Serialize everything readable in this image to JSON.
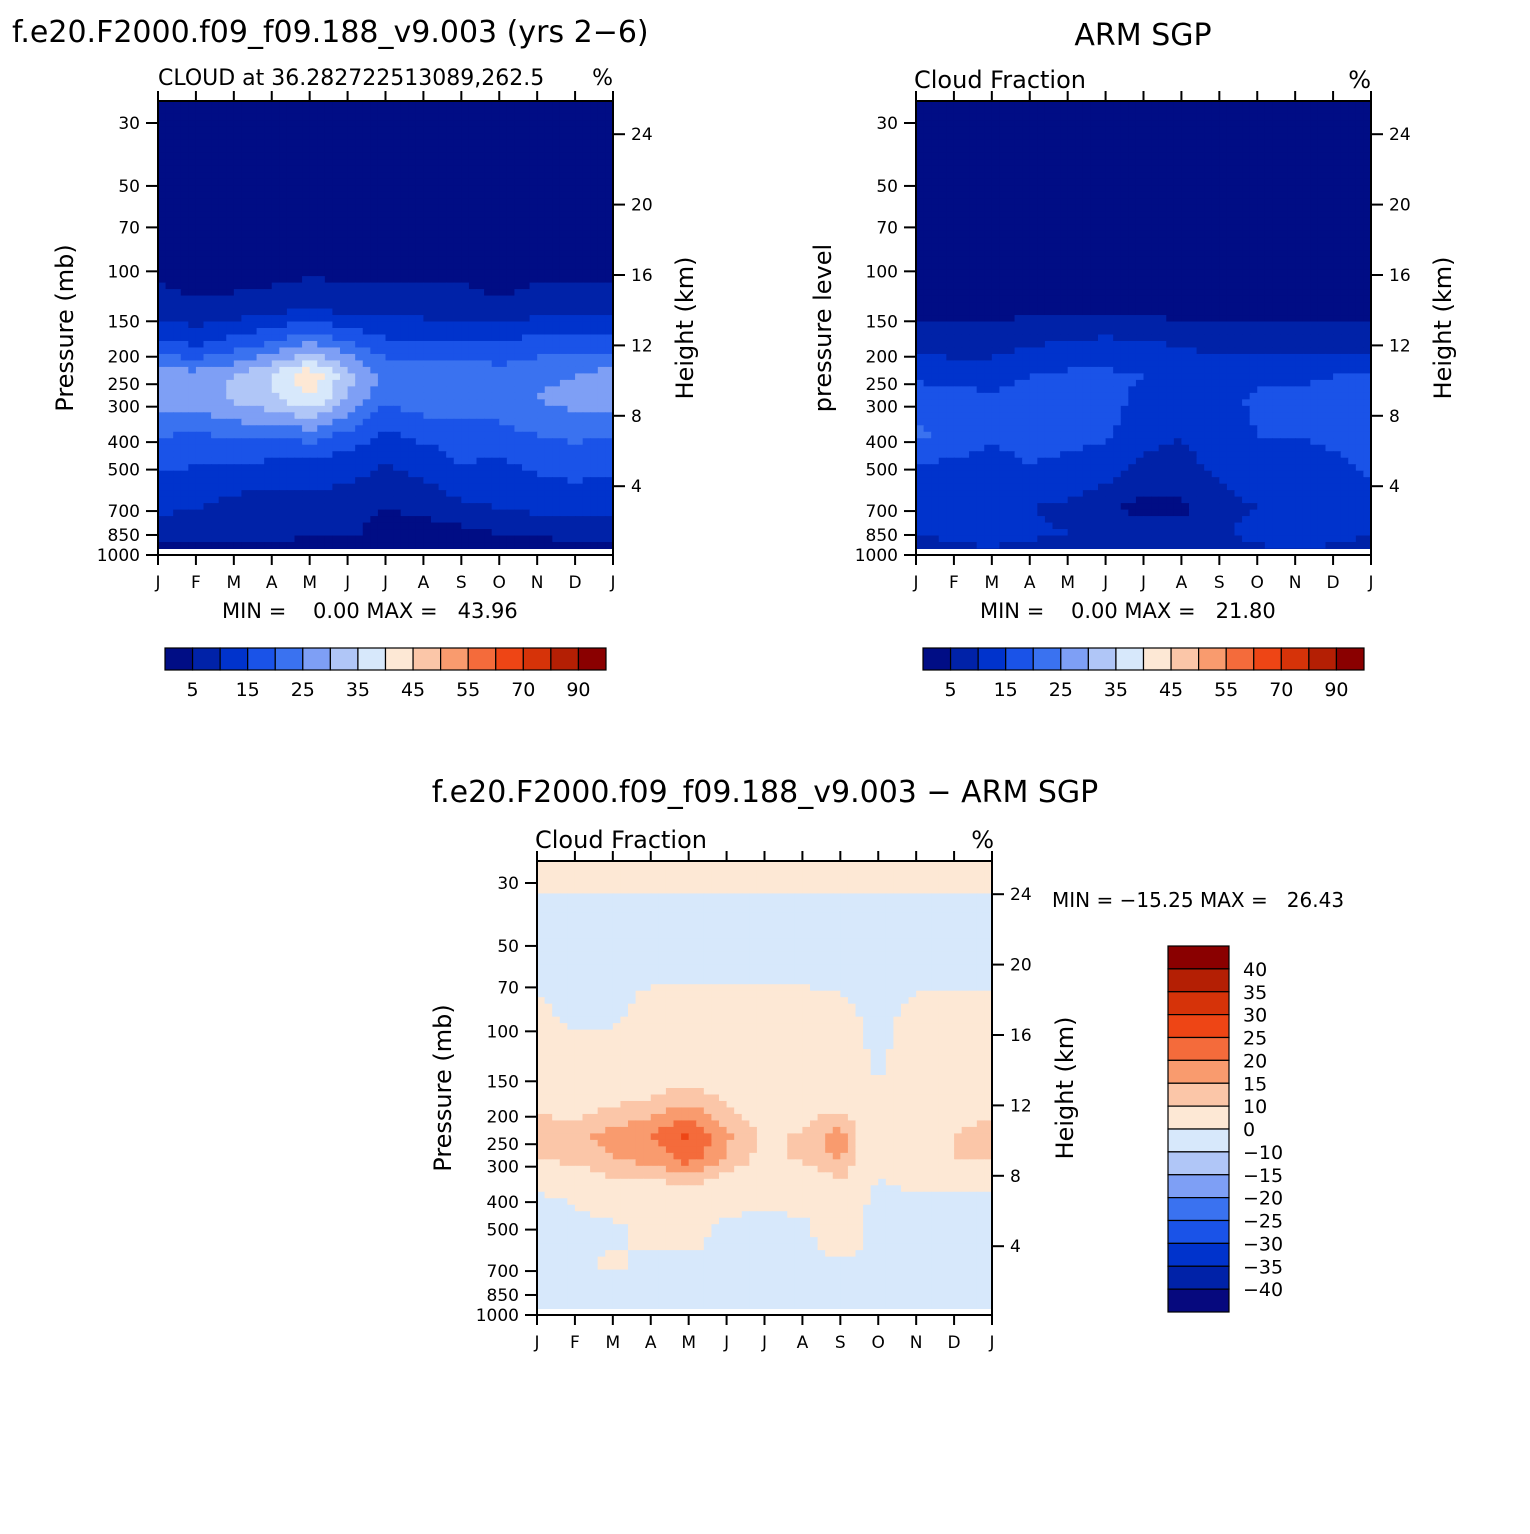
{
  "figure": {
    "top_left_title": "f.e20.F2000.f09_f09.188_v9.003 (yrs 2−6)",
    "top_right_title": "ARM SGP",
    "bottom_title": "f.e20.F2000.f09_f09.188_v9.003 − ARM SGP"
  },
  "chart_data": [
    {
      "type": "heatmap",
      "subtitle_left": "CLOUD at 36.282722513089,262.5",
      "subtitle_right": "%",
      "ylabel": "Pressure (mb)",
      "ylabel_right": "Height (km)",
      "x_ticks": [
        "J",
        "F",
        "M",
        "A",
        "M",
        "J",
        "J",
        "A",
        "S",
        "O",
        "N",
        "D",
        "J"
      ],
      "y_ticks": [
        "30",
        "50",
        "70",
        "100",
        "150",
        "200",
        "250",
        "300",
        "400",
        "500",
        "700",
        "850",
        "1000"
      ],
      "y_right_ticks": [
        "24",
        "20",
        "16",
        "12",
        "8",
        "4"
      ],
      "min_max_text": "MIN =    0.00 MAX =   43.96",
      "min": 0.0,
      "max": 43.96,
      "colorbar_labels": [
        "5",
        "15",
        "25",
        "35",
        "45",
        "55",
        "70",
        "90"
      ],
      "levels": [
        5,
        10,
        15,
        20,
        25,
        30,
        35,
        40,
        45,
        50,
        55,
        60,
        70,
        80,
        90
      ],
      "field": {
        "months": [
          "Jan",
          "Feb",
          "Mar",
          "Apr",
          "May",
          "Jun",
          "Jul",
          "Aug",
          "Sep",
          "Oct",
          "Nov",
          "Dec",
          "Jan"
        ],
        "pressure_mb": [
          1000,
          850,
          700,
          500,
          400,
          300,
          250,
          200,
          150,
          100,
          70,
          50,
          30
        ],
        "values": [
          [
            0,
            0,
            0,
            0,
            0,
            0,
            0,
            0,
            0,
            0,
            0,
            0,
            0
          ],
          [
            7,
            7,
            8,
            7,
            6,
            6,
            3,
            3,
            3,
            5,
            6,
            7,
            7
          ],
          [
            11,
            10,
            8,
            6,
            8,
            7,
            5,
            6,
            9,
            10,
            11,
            12,
            11
          ],
          [
            16,
            15,
            15,
            14,
            13,
            12,
            10,
            12,
            15,
            14,
            16,
            17,
            16
          ],
          [
            20,
            19,
            21,
            20,
            22,
            18,
            14,
            16,
            17,
            18,
            20,
            21,
            20
          ],
          [
            29,
            28,
            31,
            34,
            40,
            30,
            21,
            23,
            24,
            23,
            25,
            27,
            29
          ],
          [
            28,
            27,
            30,
            35,
            44,
            32,
            24,
            24,
            25,
            22,
            24,
            25,
            28
          ],
          [
            17,
            15,
            18,
            22,
            27,
            22,
            17,
            16,
            16,
            16,
            18,
            19,
            17
          ],
          [
            8,
            6,
            7,
            8,
            10,
            8,
            9,
            8,
            8,
            6,
            8,
            9,
            8
          ],
          [
            2,
            1,
            1,
            1,
            2,
            2,
            2,
            2,
            2,
            1,
            2,
            2,
            2
          ],
          [
            0,
            0,
            0,
            0,
            0,
            0,
            0,
            0,
            0,
            0,
            0,
            0,
            0
          ],
          [
            0,
            0,
            0,
            0,
            0,
            0,
            0,
            0,
            0,
            0,
            0,
            0,
            0
          ],
          [
            0,
            0,
            0,
            0,
            0,
            0,
            0,
            0,
            0,
            0,
            0,
            0,
            0
          ]
        ]
      }
    },
    {
      "type": "heatmap",
      "subtitle_left": "Cloud Fraction",
      "subtitle_right": "%",
      "ylabel": "pressure level",
      "ylabel_right": "Height (km)",
      "x_ticks": [
        "J",
        "F",
        "M",
        "A",
        "M",
        "J",
        "J",
        "A",
        "S",
        "O",
        "N",
        "D",
        "J"
      ],
      "y_ticks": [
        "30",
        "50",
        "70",
        "100",
        "150",
        "200",
        "250",
        "300",
        "400",
        "500",
        "700",
        "850",
        "1000"
      ],
      "y_right_ticks": [
        "24",
        "20",
        "16",
        "12",
        "8",
        "4"
      ],
      "min_max_text": "MIN =    0.00 MAX =   21.80",
      "min": 0.0,
      "max": 21.8,
      "colorbar_labels": [
        "5",
        "15",
        "25",
        "35",
        "45",
        "55",
        "70",
        "90"
      ],
      "levels": [
        5,
        10,
        15,
        20,
        25,
        30,
        35,
        40,
        45,
        50,
        55,
        60,
        70,
        80,
        90
      ],
      "field": {
        "months": [
          "Jan",
          "Feb",
          "Mar",
          "Apr",
          "May",
          "Jun",
          "Jul",
          "Aug",
          "Sep",
          "Oct",
          "Nov",
          "Dec",
          "Jan"
        ],
        "pressure_mb": [
          1000,
          850,
          700,
          500,
          400,
          300,
          250,
          200,
          150,
          100,
          70,
          50,
          30
        ],
        "values": [
          [
            7,
            8,
            8,
            7,
            7,
            6,
            6,
            5,
            6,
            8,
            9,
            8,
            7
          ],
          [
            10,
            11,
            13,
            11,
            10,
            9,
            8,
            7,
            9,
            12,
            14,
            12,
            10
          ],
          [
            12,
            11,
            12,
            10,
            9,
            6,
            3,
            4,
            8,
            10,
            11,
            10,
            12
          ],
          [
            15,
            14,
            13,
            15,
            14,
            13,
            9,
            9,
            11,
            13,
            13,
            14,
            16
          ],
          [
            21,
            18,
            16,
            17,
            16,
            16,
            11,
            10,
            12,
            15,
            15,
            16,
            19
          ],
          [
            18,
            17,
            16,
            17,
            18,
            18,
            13,
            12,
            13,
            16,
            16,
            17,
            18
          ],
          [
            14,
            13,
            13,
            15,
            16,
            16,
            15,
            13,
            13,
            14,
            14,
            15,
            15
          ],
          [
            9,
            8,
            8,
            10,
            11,
            12,
            11,
            10,
            9,
            8,
            8,
            9,
            9
          ],
          [
            3,
            3,
            3,
            4,
            4,
            4,
            4,
            3,
            3,
            3,
            3,
            3,
            3
          ],
          [
            1,
            1,
            1,
            1,
            1,
            1,
            1,
            1,
            1,
            1,
            1,
            1,
            1
          ],
          [
            0,
            0,
            0,
            0,
            0,
            0,
            0,
            0,
            0,
            0,
            0,
            0,
            0
          ],
          [
            0,
            0,
            0,
            0,
            0,
            0,
            0,
            0,
            0,
            0,
            0,
            0,
            0
          ],
          [
            0,
            0,
            0,
            0,
            0,
            0,
            0,
            0,
            0,
            0,
            0,
            0,
            0
          ]
        ]
      }
    },
    {
      "type": "heatmap",
      "subtitle_left": "Cloud Fraction",
      "subtitle_right": "%",
      "ylabel": "Pressure (mb)",
      "ylabel_right": "Height (km)",
      "x_ticks": [
        "J",
        "F",
        "M",
        "A",
        "M",
        "J",
        "J",
        "A",
        "S",
        "O",
        "N",
        "D",
        "J"
      ],
      "y_ticks": [
        "30",
        "50",
        "70",
        "100",
        "150",
        "200",
        "250",
        "300",
        "400",
        "500",
        "700",
        "850",
        "1000"
      ],
      "y_right_ticks": [
        "24",
        "20",
        "16",
        "12",
        "8",
        "4"
      ],
      "min_max_text": "MIN = −15.25 MAX =   26.43",
      "min": -15.25,
      "max": 26.43,
      "colorbar_labels": [
        "40",
        "35",
        "30",
        "25",
        "20",
        "15",
        "10",
        "0",
        "−10",
        "−15",
        "−20",
        "−25",
        "−30",
        "−35",
        "−40"
      ],
      "levels": [
        -40,
        -35,
        -30,
        -25,
        -20,
        -15,
        -10,
        0,
        10,
        15,
        20,
        25,
        30,
        35,
        40
      ],
      "field": {
        "months": [
          "Jan",
          "Feb",
          "Mar",
          "Apr",
          "May",
          "Jun",
          "Jul",
          "Aug",
          "Sep",
          "Oct",
          "Nov",
          "Dec",
          "Jan"
        ],
        "pressure_mb": [
          1000,
          850,
          700,
          500,
          400,
          300,
          250,
          200,
          150,
          100,
          70,
          50,
          30
        ],
        "values": [
          [
            -1,
            -1,
            -1,
            -1,
            -1,
            -1,
            -1,
            -1,
            -1,
            -1,
            -2,
            -1,
            -1
          ],
          [
            -2,
            -4,
            -5,
            -4,
            -4,
            -4,
            -4,
            -4,
            -5,
            -4,
            -10,
            -6,
            -3
          ],
          [
            -1,
            -1,
            1,
            -2,
            -1,
            -1,
            -2,
            -2,
            -1,
            -1,
            -2,
            -2,
            -1
          ],
          [
            -2,
            -2,
            -1,
            2,
            2,
            -1,
            -1,
            -1,
            4,
            -2,
            -2,
            -2,
            -2
          ],
          [
            -1,
            1,
            5,
            3,
            6,
            2,
            1,
            2,
            5,
            -2,
            -1,
            -1,
            -1
          ],
          [
            11,
            11,
            15,
            17,
            22,
            14,
            8,
            11,
            16,
            2,
            8,
            10,
            11
          ],
          [
            14,
            14,
            17,
            20,
            26,
            16,
            9,
            11,
            18,
            2,
            9,
            10,
            14
          ],
          [
            8,
            7,
            10,
            12,
            16,
            10,
            6,
            6,
            9,
            3,
            4,
            5,
            8
          ],
          [
            5,
            3,
            4,
            4,
            6,
            4,
            2,
            2,
            3,
            -1,
            3,
            4,
            5
          ],
          [
            1,
            -1,
            -1,
            2,
            2,
            2,
            2,
            2,
            1,
            -1,
            1,
            1,
            1
          ],
          [
            -1,
            -1,
            -1,
            -1,
            -1,
            -1,
            -1,
            -1,
            -1,
            -1,
            -1,
            -1,
            -1
          ],
          [
            -1,
            -1,
            -1,
            -1,
            -1,
            -1,
            -1,
            -1,
            -1,
            -1,
            -1,
            -1,
            -1
          ],
          [
            1,
            1,
            1,
            1,
            1,
            1,
            1,
            1,
            1,
            1,
            1,
            1,
            1
          ]
        ]
      }
    }
  ],
  "palette": {
    "seq15": [
      "#000d85",
      "#0022a8",
      "#0033cc",
      "#1a53e8",
      "#3a72f0",
      "#7e9ff5",
      "#b0c6f7",
      "#d7e8fb",
      "#fde8d5",
      "#fbc6a8",
      "#f99b6e",
      "#f46b3b",
      "#ee4515",
      "#d63309",
      "#b41f04",
      "#8a0000"
    ],
    "div15": [
      "#06097e",
      "#0022a8",
      "#0033cc",
      "#1a53e8",
      "#3a72f0",
      "#7e9ff5",
      "#b0c6f7",
      "#d7e8fb",
      "#fde8d5",
      "#fbc6a8",
      "#f99b6e",
      "#f46b3b",
      "#ee4515",
      "#d63309",
      "#b41f04",
      "#8a0000"
    ]
  }
}
